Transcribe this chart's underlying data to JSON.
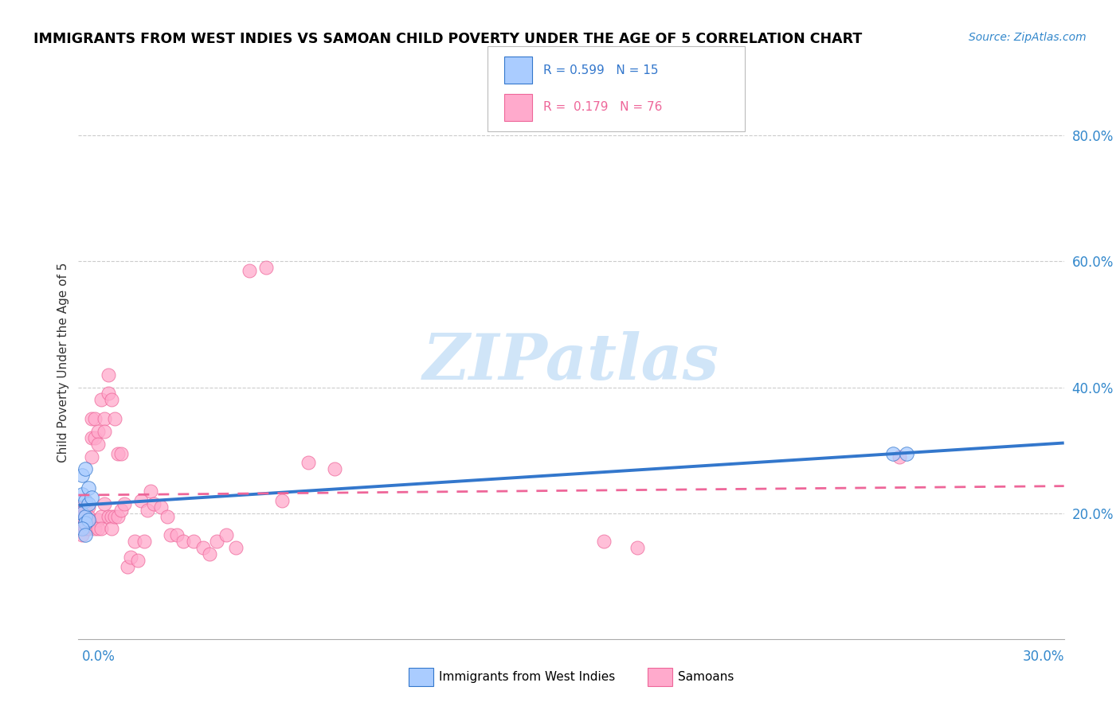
{
  "title": "IMMIGRANTS FROM WEST INDIES VS SAMOAN CHILD POVERTY UNDER THE AGE OF 5 CORRELATION CHART",
  "source": "Source: ZipAtlas.com",
  "ylabel": "Child Poverty Under the Age of 5",
  "xmin": 0.0,
  "xmax": 0.3,
  "ymin": 0.0,
  "ymax": 0.88,
  "color_blue": "#aaccff",
  "color_pink": "#ffaacc",
  "color_blue_line": "#3377cc",
  "color_pink_line": "#ee6699",
  "color_grid": "#cccccc",
  "watermark_color": "#d0e5f8",
  "west_indies_x": [
    0.001,
    0.001,
    0.001,
    0.002,
    0.002,
    0.002,
    0.002,
    0.003,
    0.003,
    0.003,
    0.004,
    0.001,
    0.002,
    0.248,
    0.252
  ],
  "west_indies_y": [
    0.26,
    0.23,
    0.2,
    0.27,
    0.22,
    0.195,
    0.185,
    0.24,
    0.215,
    0.19,
    0.225,
    0.175,
    0.165,
    0.295,
    0.295
  ],
  "samoans_x": [
    0.001,
    0.001,
    0.001,
    0.001,
    0.001,
    0.001,
    0.001,
    0.002,
    0.002,
    0.002,
    0.002,
    0.002,
    0.002,
    0.002,
    0.003,
    0.003,
    0.003,
    0.003,
    0.003,
    0.004,
    0.004,
    0.004,
    0.005,
    0.005,
    0.005,
    0.006,
    0.006,
    0.006,
    0.006,
    0.007,
    0.007,
    0.007,
    0.008,
    0.008,
    0.008,
    0.009,
    0.009,
    0.009,
    0.01,
    0.01,
    0.01,
    0.011,
    0.011,
    0.012,
    0.012,
    0.013,
    0.013,
    0.014,
    0.015,
    0.016,
    0.017,
    0.018,
    0.019,
    0.02,
    0.021,
    0.022,
    0.023,
    0.025,
    0.027,
    0.028,
    0.03,
    0.032,
    0.035,
    0.038,
    0.04,
    0.042,
    0.045,
    0.048,
    0.052,
    0.057,
    0.062,
    0.07,
    0.078,
    0.16,
    0.17,
    0.25
  ],
  "samoans_y": [
    0.195,
    0.185,
    0.175,
    0.165,
    0.19,
    0.21,
    0.195,
    0.205,
    0.195,
    0.185,
    0.175,
    0.21,
    0.195,
    0.185,
    0.19,
    0.21,
    0.195,
    0.185,
    0.175,
    0.29,
    0.32,
    0.35,
    0.35,
    0.32,
    0.175,
    0.33,
    0.31,
    0.19,
    0.175,
    0.38,
    0.195,
    0.175,
    0.35,
    0.33,
    0.215,
    0.42,
    0.39,
    0.195,
    0.38,
    0.195,
    0.175,
    0.35,
    0.195,
    0.295,
    0.195,
    0.295,
    0.205,
    0.215,
    0.115,
    0.13,
    0.155,
    0.125,
    0.22,
    0.155,
    0.205,
    0.235,
    0.215,
    0.21,
    0.195,
    0.165,
    0.165,
    0.155,
    0.155,
    0.145,
    0.135,
    0.155,
    0.165,
    0.145,
    0.585,
    0.59,
    0.22,
    0.28,
    0.27,
    0.155,
    0.145,
    0.29
  ],
  "ytick_positions": [
    0.2,
    0.4,
    0.6,
    0.8
  ],
  "ytick_labels": [
    "20.0%",
    "40.0%",
    "60.0%",
    "80.0%"
  ]
}
